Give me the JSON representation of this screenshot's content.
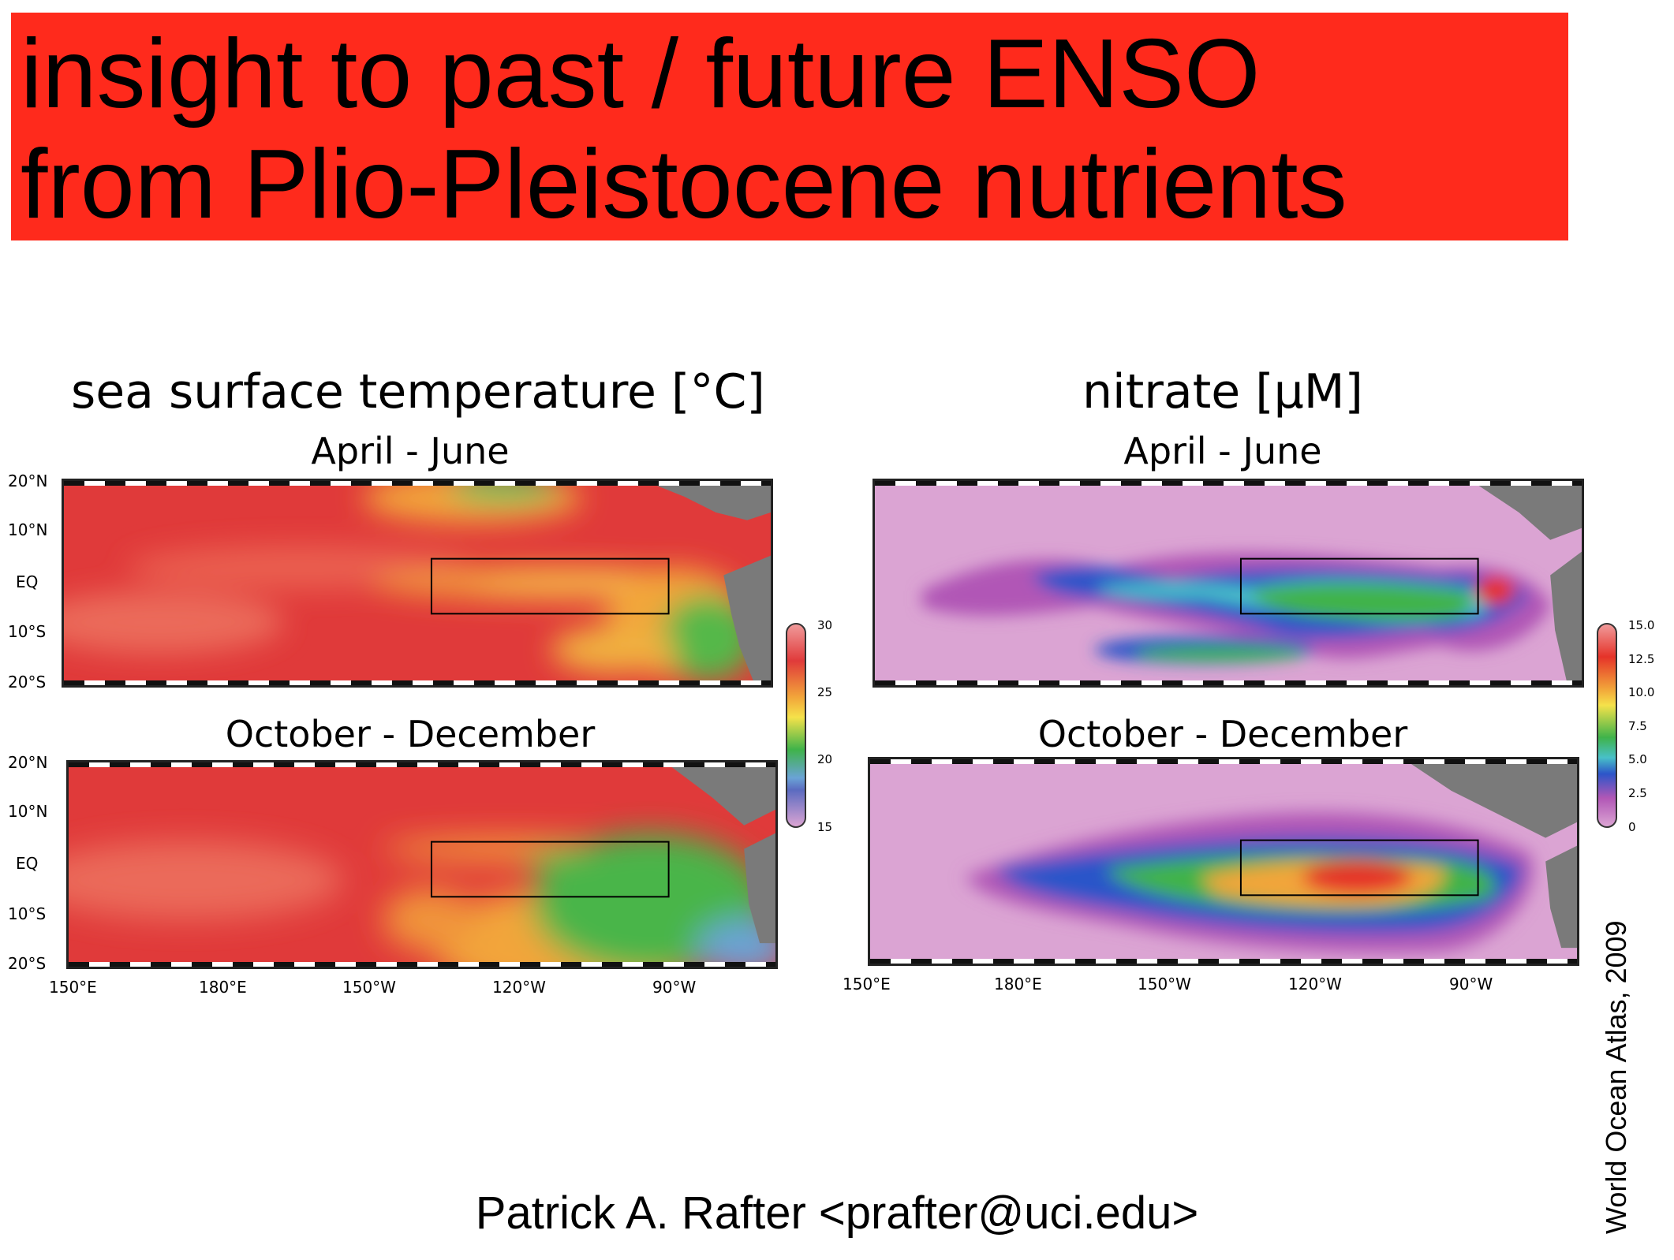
{
  "title": {
    "line1": "insight to past / future ENSO",
    "line2": "from Plio-Pleistocene nutrients",
    "banner_color": "#ff2a1c"
  },
  "sst_panel": {
    "heading": "sea surface temperature [°C]",
    "season_top": "April - June",
    "season_bottom": "October - December",
    "colorbar": {
      "min": 15,
      "max": 30,
      "labels": [
        "30",
        "25",
        "20",
        "15"
      ]
    }
  },
  "nitrate_panel": {
    "heading": "nitrate [μM]",
    "season_top": "April - June",
    "season_bottom": "October - December",
    "colorbar": {
      "min": 0,
      "max": 15,
      "labels": [
        "15.0",
        "12.5",
        "10.0",
        "7.5",
        "5.0",
        "2.5",
        "0"
      ]
    }
  },
  "axes": {
    "lat_labels": [
      "20°N",
      "10°N",
      "EQ",
      "10°S",
      "20°S"
    ],
    "lon_labels": [
      "150°E",
      "180°E",
      "150°W",
      "120°W",
      "90°W"
    ]
  },
  "credit": "World Ocean Atlas, 2009",
  "author": "Patrick A. Rafter <prafter@uci.edu>",
  "colors": {
    "land": "#7a7a7a",
    "sst_warm": "#e33b3b",
    "sst_mid": "#f2a53a",
    "sst_cool": "#3fb34a",
    "nitrate_low": "#d9a2d1",
    "nitrate_mid": "#2c55c9",
    "nitrate_high": "#e53329"
  }
}
